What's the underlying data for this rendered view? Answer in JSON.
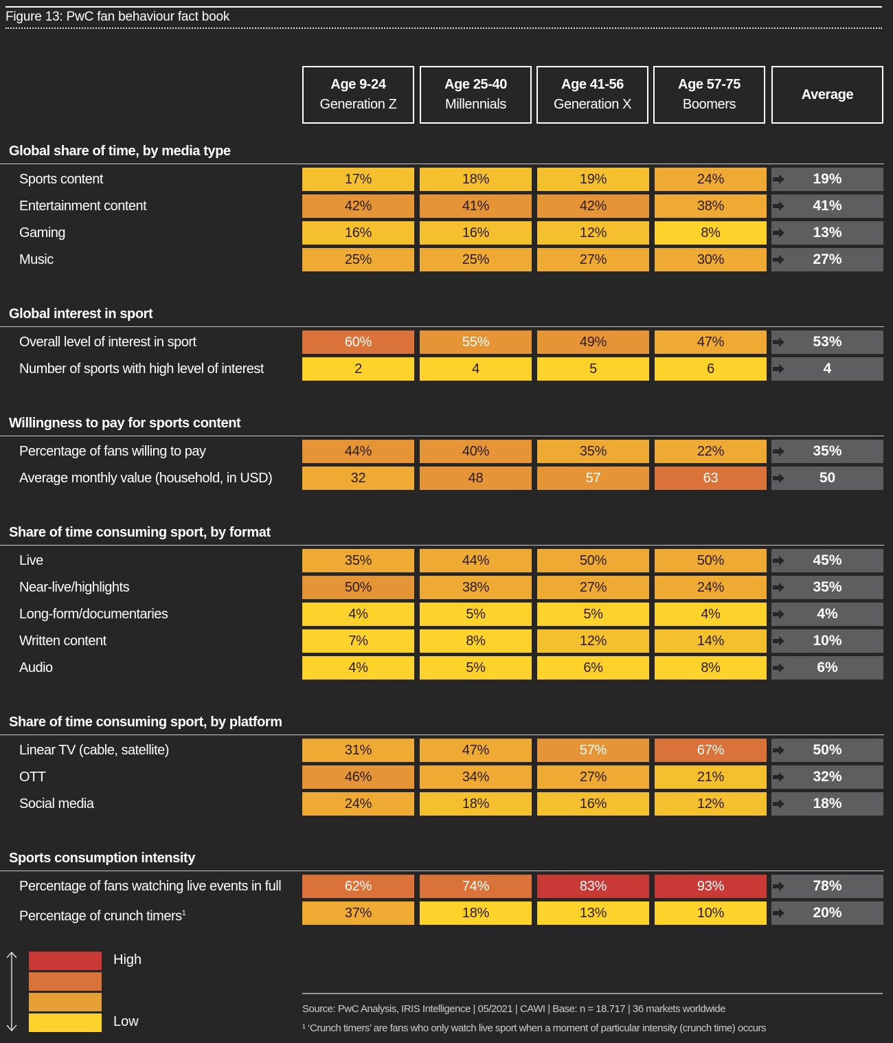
{
  "title": "Figure 13: PwC fan behaviour fact book",
  "columns": [
    {
      "line1": "Age 9-24",
      "line2": "Generation Z"
    },
    {
      "line1": "Age 25-40",
      "line2": "Millennials"
    },
    {
      "line1": "Age 41-56",
      "line2": "Generation X"
    },
    {
      "line1": "Age 57-75",
      "line2": "Boomers"
    },
    {
      "line1": "Average",
      "line2": ""
    }
  ],
  "colors": {
    "background": "#262626",
    "average_cell": "#5e5e60",
    "shades": [
      "#fdd22a",
      "#f5c02e",
      "#eeaa32",
      "#e69536",
      "#d9733a",
      "#c93a36"
    ]
  },
  "chart_data": {
    "type": "table",
    "title": "Figure 13: PwC fan behaviour fact book",
    "sections": [
      {
        "heading": "Global share of time, by media type",
        "rows": [
          {
            "label": "Sports content",
            "values": [
              "17%",
              "18%",
              "19%",
              "24%"
            ],
            "average": "19%",
            "levels": [
              1,
              1,
              1,
              2
            ]
          },
          {
            "label": "Entertainment content",
            "values": [
              "42%",
              "41%",
              "42%",
              "38%"
            ],
            "average": "41%",
            "levels": [
              3,
              3,
              3,
              2
            ]
          },
          {
            "label": "Gaming",
            "values": [
              "16%",
              "16%",
              "12%",
              "8%"
            ],
            "average": "13%",
            "levels": [
              1,
              1,
              1,
              0
            ]
          },
          {
            "label": "Music",
            "values": [
              "25%",
              "25%",
              "27%",
              "30%"
            ],
            "average": "27%",
            "levels": [
              2,
              2,
              2,
              2
            ]
          }
        ]
      },
      {
        "heading": "Global interest in sport",
        "rows": [
          {
            "label": "Overall level of interest in sport",
            "values": [
              "60%",
              "55%",
              "49%",
              "47%"
            ],
            "average": "53%",
            "levels": [
              4,
              3,
              3,
              2
            ]
          },
          {
            "label": "Number of sports with high level of interest",
            "values": [
              "2",
              "4",
              "5",
              "6"
            ],
            "average": "4",
            "levels": [
              0,
              0,
              0,
              0
            ]
          }
        ]
      },
      {
        "heading": "Willingness to pay for sports content",
        "rows": [
          {
            "label": "Percentage of fans willing to pay",
            "values": [
              "44%",
              "40%",
              "35%",
              "22%"
            ],
            "average": "35%",
            "levels": [
              3,
              3,
              2,
              2
            ]
          },
          {
            "label": "Average monthly value (household, in USD)",
            "values": [
              "32",
              "48",
              "57",
              "63"
            ],
            "average": "50",
            "levels": [
              2,
              3,
              3,
              4
            ]
          }
        ]
      },
      {
        "heading": "Share of time consuming sport, by format",
        "rows": [
          {
            "label": "Live",
            "values": [
              "35%",
              "44%",
              "50%",
              "50%"
            ],
            "average": "45%",
            "levels": [
              2,
              2,
              2,
              2
            ]
          },
          {
            "label": "Near-live/highlights",
            "values": [
              "50%",
              "38%",
              "27%",
              "24%"
            ],
            "average": "35%",
            "levels": [
              3,
              2,
              2,
              2
            ]
          },
          {
            "label": "Long-form/documentaries",
            "values": [
              "4%",
              "5%",
              "5%",
              "4%"
            ],
            "average": "4%",
            "levels": [
              0,
              0,
              0,
              0
            ]
          },
          {
            "label": "Written content",
            "values": [
              "7%",
              "8%",
              "12%",
              "14%"
            ],
            "average": "10%",
            "levels": [
              0,
              0,
              1,
              1
            ]
          },
          {
            "label": "Audio",
            "values": [
              "4%",
              "5%",
              "6%",
              "8%"
            ],
            "average": "6%",
            "levels": [
              0,
              0,
              0,
              0
            ]
          }
        ]
      },
      {
        "heading": "Share of time consuming sport, by platform",
        "rows": [
          {
            "label": "Linear TV (cable, satellite)",
            "values": [
              "31%",
              "47%",
              "57%",
              "67%"
            ],
            "average": "50%",
            "levels": [
              2,
              2,
              3,
              4
            ]
          },
          {
            "label": "OTT",
            "values": [
              "46%",
              "34%",
              "27%",
              "21%"
            ],
            "average": "32%",
            "levels": [
              3,
              2,
              2,
              1
            ]
          },
          {
            "label": "Social media",
            "values": [
              "24%",
              "18%",
              "16%",
              "12%"
            ],
            "average": "18%",
            "levels": [
              2,
              1,
              1,
              1
            ]
          }
        ]
      },
      {
        "heading": "Sports consumption intensity",
        "rows": [
          {
            "label": "Percentage of fans watching live events in full",
            "values": [
              "62%",
              "74%",
              "83%",
              "93%"
            ],
            "average": "78%",
            "levels": [
              4,
              4,
              5,
              5
            ]
          },
          {
            "label": "Percentage of crunch timers",
            "sup": "1",
            "values": [
              "37%",
              "18%",
              "13%",
              "10%"
            ],
            "average": "20%",
            "levels": [
              2,
              0,
              0,
              0
            ]
          }
        ]
      }
    ]
  },
  "legend": {
    "high": "High",
    "low": "Low",
    "colors": [
      "#c93a36",
      "#d9733a",
      "#e69e37",
      "#fdd22a"
    ]
  },
  "footer": {
    "source": "Source: PwC Analysis, IRIS Intelligence | 05/2021 | CAWI | Base: n = 18.717 | 36 markets worldwide",
    "footnote": "¹ ‘Crunch timers’ are fans who only watch live sport when a moment of particular intensity (crunch time) occurs"
  }
}
